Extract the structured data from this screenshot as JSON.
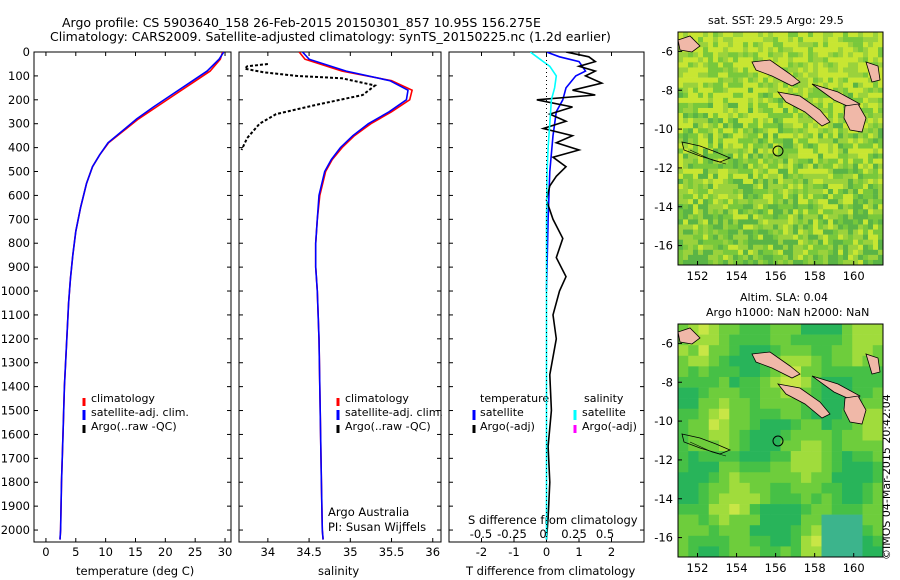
{
  "header": {
    "line1": "Argo profile: CS 5903640_158 26-Feb-2015 20150301_857 10.95S 156.275E",
    "line2": "Climatology: CARS2009. Satellite-adjusted climatology: synTS_20150225.nc (1.2d earlier)"
  },
  "credit": "©IMOS 04-Mar-2015 20:42:04",
  "colors": {
    "climatology": "#ff0000",
    "satellite": "#0000ff",
    "argo": "#000000",
    "cyan": "#00ffff",
    "magenta": "#ff00ff"
  },
  "chart_data": [
    {
      "id": "temperature",
      "type": "line",
      "xlabel": "temperature (deg C)",
      "xlim": [
        -2,
        31
      ],
      "ylim": [
        2050,
        0
      ],
      "xticks": [
        0,
        5,
        10,
        15,
        20,
        25,
        30
      ],
      "yticks": [
        0,
        100,
        200,
        300,
        400,
        500,
        600,
        700,
        800,
        900,
        1000,
        1100,
        1200,
        1300,
        1400,
        1500,
        1600,
        1700,
        1800,
        1900,
        2000
      ],
      "legend": [
        "climatology",
        "satellite-adj. clim.",
        "Argo(..raw -QC)"
      ],
      "series": [
        {
          "name": "climatology",
          "color": "#ff0000",
          "x": [
            29.6,
            29.2,
            27.5,
            24.5,
            21.5,
            18.5,
            15.5,
            13,
            10.5,
            9,
            7.8,
            6.8,
            5.8,
            5,
            4.5,
            4.1,
            3.8,
            3.5,
            3.1,
            2.85,
            2.6,
            2.45,
            2.35
          ],
          "y": [
            0,
            30,
            80,
            130,
            180,
            230,
            280,
            330,
            380,
            430,
            480,
            550,
            650,
            750,
            850,
            950,
            1050,
            1200,
            1400,
            1600,
            1800,
            2000,
            2040
          ]
        },
        {
          "name": "satellite-adj. clim.",
          "color": "#0000ff",
          "x": [
            29.8,
            29.0,
            27.0,
            24.0,
            21.0,
            18.0,
            15.2,
            12.8,
            10.4,
            9,
            7.8,
            6.8,
            5.8,
            5,
            4.5,
            4.1,
            3.8,
            3.5,
            3.1,
            2.85,
            2.6,
            2.45,
            2.35
          ],
          "y": [
            0,
            30,
            80,
            130,
            180,
            230,
            280,
            330,
            380,
            430,
            480,
            550,
            650,
            750,
            850,
            950,
            1050,
            1200,
            1400,
            1600,
            1800,
            2000,
            2040
          ]
        }
      ]
    },
    {
      "id": "salinity",
      "type": "line",
      "xlabel": "salinity",
      "xlim": [
        33.65,
        36.1
      ],
      "ylim": [
        2050,
        0
      ],
      "xticks": [
        34,
        34.5,
        35,
        35.5,
        36
      ],
      "legend": [
        "climatology",
        "satellite-adj. clim.",
        "Argo(..raw -QC)"
      ],
      "note": [
        "Argo Australia",
        "PI: Susan Wijffels"
      ],
      "series": [
        {
          "name": "climatology",
          "color": "#ff0000",
          "x": [
            34.38,
            34.45,
            34.9,
            35.5,
            35.75,
            35.72,
            35.5,
            35.25,
            35.05,
            34.9,
            34.78,
            34.7,
            34.63,
            34.6,
            34.58,
            34.58,
            34.6,
            34.62,
            34.63,
            34.64,
            34.65,
            34.66,
            34.67
          ],
          "y": [
            0,
            30,
            80,
            120,
            160,
            200,
            250,
            300,
            350,
            400,
            450,
            500,
            600,
            700,
            800,
            900,
            1000,
            1200,
            1400,
            1600,
            1800,
            2000,
            2040
          ]
        },
        {
          "name": "satellite-adj. clim.",
          "color": "#0000ff",
          "x": [
            34.42,
            34.5,
            34.95,
            35.48,
            35.7,
            35.68,
            35.47,
            35.22,
            35.03,
            34.88,
            34.77,
            34.69,
            34.62,
            34.6,
            34.58,
            34.58,
            34.6,
            34.62,
            34.63,
            34.64,
            34.65,
            34.66,
            34.67
          ],
          "y": [
            0,
            30,
            80,
            120,
            160,
            200,
            250,
            300,
            350,
            400,
            450,
            500,
            600,
            700,
            800,
            900,
            1000,
            1200,
            1400,
            1600,
            1800,
            2000,
            2040
          ]
        },
        {
          "name": "Argo(..raw -QC)",
          "color": "#000000",
          "dash": true,
          "x": [
            34.0,
            33.75,
            33.72,
            33.95,
            34.35,
            34.9,
            35.3,
            35.15,
            34.6,
            34.1,
            33.9,
            33.75,
            33.68
          ],
          "y": [
            50,
            60,
            70,
            85,
            100,
            110,
            140,
            180,
            220,
            260,
            300,
            360,
            410
          ]
        }
      ]
    },
    {
      "id": "difference",
      "type": "line",
      "xlabel": "T difference from climatology",
      "xlabel_top": "S difference from climatology",
      "xlim": [
        -3,
        3
      ],
      "ylim": [
        2050,
        0
      ],
      "xticks": [
        -2,
        -1,
        0,
        1,
        2
      ],
      "xticks_top": [
        "-0.5",
        "-0.25",
        "0",
        "0.25",
        "0.5"
      ],
      "legend_temperature": {
        "title": "temperature",
        "items": [
          "satellite",
          "Argo(-adj)"
        ]
      },
      "legend_salinity": {
        "title": "salinity",
        "items": [
          "satellite",
          "Argo(-adj)"
        ]
      },
      "series": [
        {
          "name": "temperature satellite",
          "color": "#0000ff",
          "x": [
            0,
            0.4,
            1.0,
            1.2,
            0.9,
            0.6,
            0.5,
            0.3,
            0.2,
            0.1,
            0.05,
            0
          ],
          "y": [
            0,
            20,
            40,
            80,
            100,
            150,
            200,
            250,
            350,
            500,
            700,
            1000
          ]
        },
        {
          "name": "temperature Argo(-adj)",
          "color": "#000000",
          "x": [
            0.6,
            1.3,
            1.5,
            1.0,
            1.5,
            1.2,
            1.7,
            0.8,
            1.5,
            -0.3,
            0.8,
            0.1,
            0.6,
            -0.1,
            0.8,
            0.3,
            1.0,
            0.2,
            0.6,
            0.3,
            0.1,
            0,
            0.2,
            0.5,
            0.3,
            0.6,
            0.4,
            0.2,
            0.3,
            0.1,
            0.15,
            0.05,
            0.1,
            0.05,
            0
          ],
          "y": [
            0,
            20,
            40,
            60,
            80,
            100,
            130,
            160,
            180,
            200,
            230,
            260,
            290,
            320,
            350,
            380,
            410,
            440,
            480,
            520,
            560,
            620,
            700,
            780,
            860,
            940,
            1000,
            1100,
            1200,
            1350,
            1500,
            1650,
            1800,
            1950,
            2040
          ]
        },
        {
          "name": "salinity satellite",
          "color": "#00ffff",
          "x": [
            -0.5,
            -0.3,
            -0.1,
            0.1,
            0.3,
            0.25,
            0.15,
            0.1,
            0.05,
            0.02,
            0,
            0,
            0,
            0
          ],
          "y": [
            0,
            20,
            40,
            60,
            100,
            150,
            200,
            300,
            400,
            500,
            700,
            1000,
            1500,
            2040
          ]
        }
      ]
    },
    {
      "id": "map-sst",
      "type": "heatmap",
      "title": "sat. SST: 29.5 Argo: 29.5",
      "xlim": [
        151,
        161.5
      ],
      "ylim": [
        -17,
        -5
      ],
      "xticks": [
        152,
        154,
        156,
        158,
        160
      ],
      "yticks": [
        -6,
        -8,
        -10,
        -12,
        -14,
        -16
      ],
      "marker": [
        156.275,
        -10.95
      ]
    },
    {
      "id": "map-sla",
      "type": "heatmap",
      "title_line1": "Altim. SLA: 0.04",
      "title_line2": "Argo h1000: NaN h2000: NaN",
      "xlim": [
        151,
        161.5
      ],
      "ylim": [
        -17,
        -5
      ],
      "xticks": [
        152,
        154,
        156,
        158,
        160
      ],
      "yticks": [
        -6,
        -8,
        -10,
        -12,
        -14,
        -16
      ],
      "marker": [
        156.275,
        -10.95
      ]
    }
  ]
}
